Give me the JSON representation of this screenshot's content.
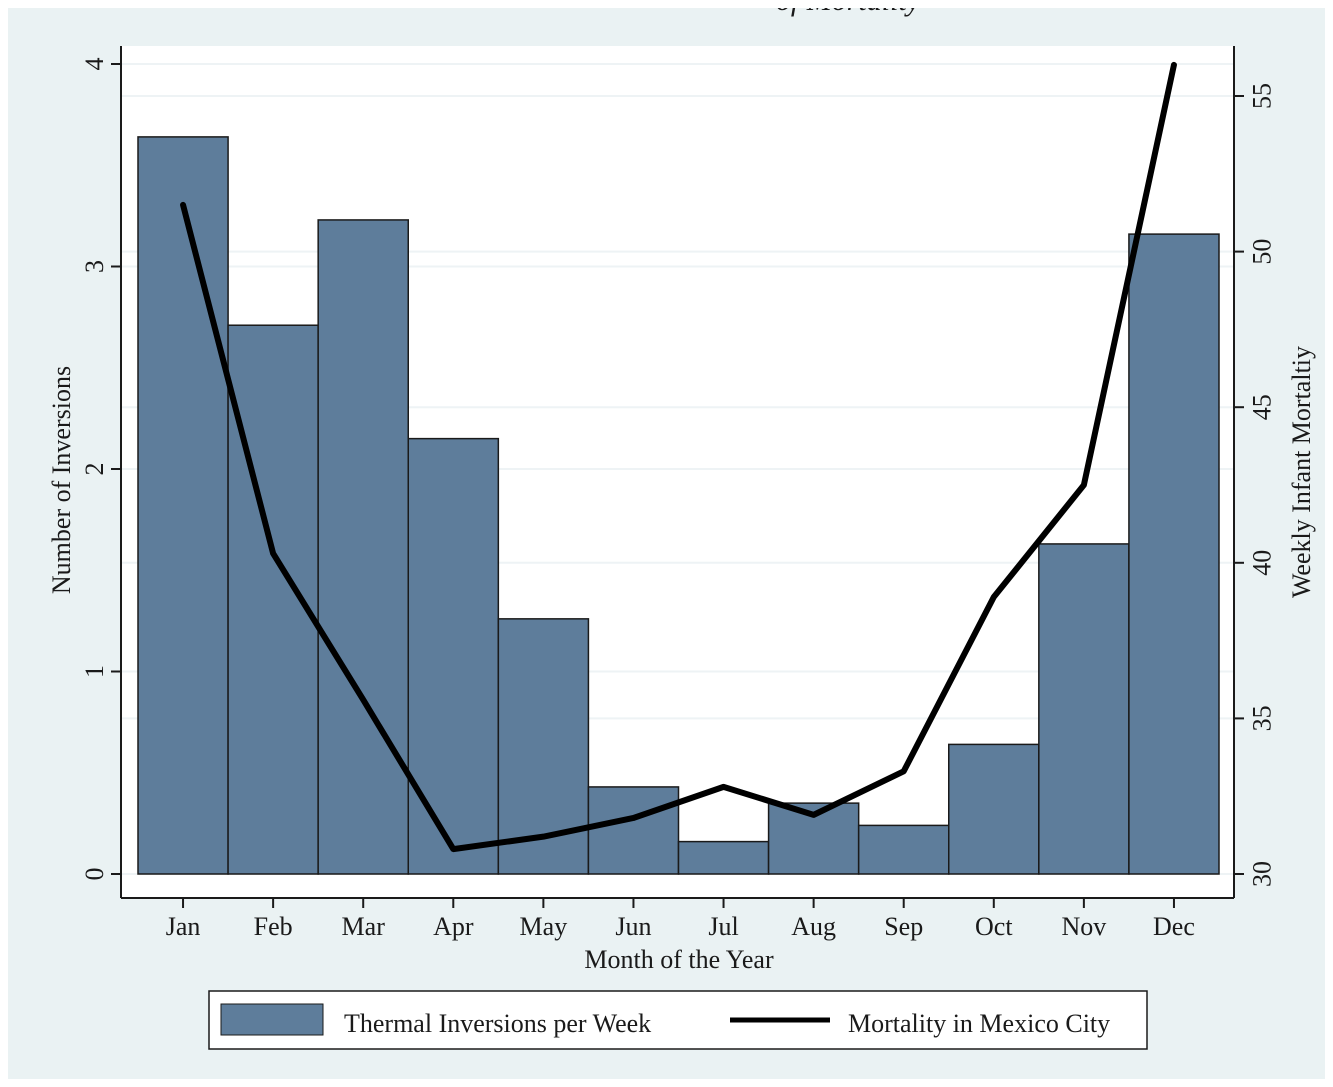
{
  "chart_data": {
    "type": "bar",
    "top_caption": "of Mortality",
    "xlabel": "Month of the Year",
    "ylabel_left": "Number of Inversions",
    "ylabel_right": "Weekly Infant Mortaltiy",
    "categories": [
      "Jan",
      "Feb",
      "Mar",
      "Apr",
      "May",
      "Jun",
      "Jul",
      "Aug",
      "Sep",
      "Oct",
      "Nov",
      "Dec"
    ],
    "series": [
      {
        "name": "Thermal Inversions per Week",
        "kind": "bar",
        "axis": "left",
        "values": [
          3.64,
          2.71,
          3.23,
          2.15,
          1.26,
          0.43,
          0.16,
          0.35,
          0.24,
          0.64,
          1.63,
          3.16
        ],
        "color": "#5e7d9b"
      },
      {
        "name": "Mortality in Mexico City",
        "kind": "line",
        "axis": "right",
        "values": [
          51.5,
          40.3,
          35.6,
          30.8,
          31.2,
          31.8,
          32.8,
          31.9,
          33.3,
          38.9,
          42.5,
          56.0
        ],
        "color": "#000000"
      }
    ],
    "ylim_left": [
      0,
      4.1
    ],
    "yticks_left": [
      0,
      1,
      2,
      3,
      4
    ],
    "ylim_right": [
      30,
      56.3
    ],
    "yticks_right": [
      30,
      35,
      40,
      45,
      50,
      55
    ],
    "grid": true,
    "legend_position": "bottom"
  }
}
